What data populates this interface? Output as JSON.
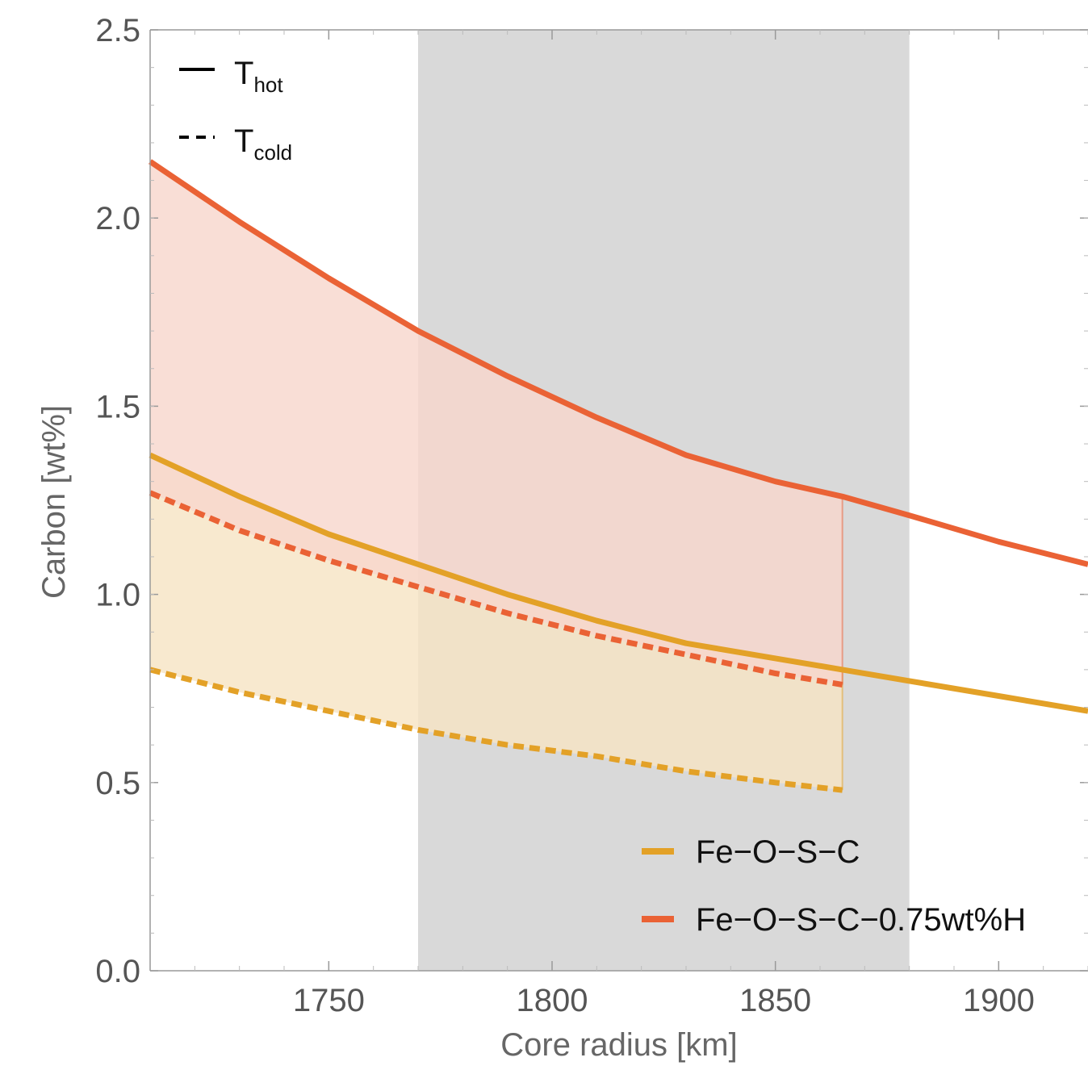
{
  "chart_data": {
    "type": "line",
    "title": "",
    "xlabel": "Core radius [km]",
    "ylabel": "Carbon [wt%]",
    "xlim": [
      1710,
      1920
    ],
    "ylim": [
      0,
      2.5
    ],
    "x_ticks": [
      1750,
      1800,
      1850,
      1900
    ],
    "x_tick_labels": [
      "1750",
      "1800",
      "1850",
      "1900"
    ],
    "y_ticks": [
      0,
      0.5,
      1,
      1.5,
      2,
      2.5
    ],
    "y_tick_labels": [
      "0.0",
      "0.5",
      "1.0",
      "1.5",
      "2.0",
      "2.5"
    ],
    "grid": false,
    "shaded_region": {
      "x_start": 1770,
      "x_end": 1880,
      "color": "#d9d9d9"
    },
    "line_style_legend": {
      "placement": "top-left",
      "entries": [
        {
          "style": "solid",
          "base": "T",
          "sub": "hot"
        },
        {
          "style": "dashed",
          "base": "T",
          "sub": "cold"
        }
      ]
    },
    "series_legend": {
      "placement": "bottom-right",
      "entries": [
        {
          "label": "Fe−O−S−C",
          "color": "#e3a127"
        },
        {
          "label": "Fe−O−S−C−0.75wt%H",
          "color": "#ea6235"
        }
      ]
    },
    "series": [
      {
        "name": "Fe−O−S−C",
        "color": "#e3a127",
        "fill_color": "#f6e3c3",
        "fill_until": 1865,
        "hot": {
          "x": [
            1710,
            1730,
            1750,
            1770,
            1790,
            1810,
            1830,
            1850,
            1865,
            1880,
            1900,
            1920
          ],
          "y": [
            1.37,
            1.26,
            1.16,
            1.08,
            1.0,
            0.93,
            0.87,
            0.83,
            0.8,
            0.77,
            0.73,
            0.69
          ]
        },
        "cold": {
          "x": [
            1710,
            1730,
            1750,
            1770,
            1790,
            1810,
            1830,
            1850,
            1865
          ],
          "y": [
            0.8,
            0.74,
            0.69,
            0.64,
            0.6,
            0.57,
            0.53,
            0.5,
            0.48
          ]
        }
      },
      {
        "name": "Fe−O−S−C−0.75wt%H",
        "color": "#ea6235",
        "fill_color": "#f8d6cc",
        "fill_until": 1865,
        "hot": {
          "x": [
            1710,
            1730,
            1750,
            1770,
            1790,
            1810,
            1830,
            1850,
            1865,
            1880,
            1900,
            1920
          ],
          "y": [
            2.15,
            1.99,
            1.84,
            1.7,
            1.58,
            1.47,
            1.37,
            1.3,
            1.26,
            1.21,
            1.14,
            1.08
          ]
        },
        "cold": {
          "x": [
            1710,
            1730,
            1750,
            1770,
            1790,
            1810,
            1830,
            1850,
            1865
          ],
          "y": [
            1.27,
            1.17,
            1.09,
            1.02,
            0.95,
            0.89,
            0.84,
            0.79,
            0.76
          ]
        }
      }
    ]
  }
}
